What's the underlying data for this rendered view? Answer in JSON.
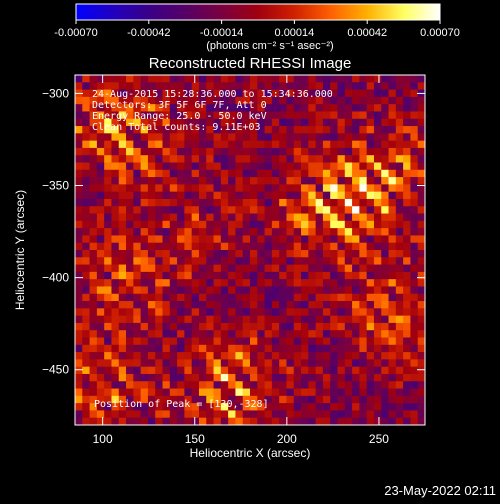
{
  "chart_data": {
    "type": "heatmap",
    "title": "Reconstructed RHESSI Image",
    "xlabel": "Heliocentric X (arcsec)",
    "ylabel": "Heliocentric Y (arcsec)",
    "xlim": [
      85,
      275
    ],
    "ylim": [
      -480,
      -290
    ],
    "xticks": [
      100,
      150,
      200,
      250
    ],
    "yticks": [
      -300,
      -350,
      -400,
      -450
    ],
    "colorbar": {
      "range": [
        -0.0007,
        0.0007
      ],
      "ticks": [
        "-0.00070",
        "-0.00042",
        "-0.00014",
        "0.00014",
        "0.00042",
        "0.00070"
      ],
      "unit_label": "(photons cm⁻² s⁻¹ asec⁻²)",
      "colormap": [
        "#0000ff",
        "#2000c0",
        "#3a0088",
        "#550066",
        "#7a0040",
        "#a00010",
        "#d02000",
        "#ff6000",
        "#ffb000",
        "#ffff60",
        "#ffffff"
      ]
    },
    "annotations": [
      "24-Aug-2015 15:28:36.000 to 15:34:36.000",
      "Detectors: 3F 5F 6F 7F, Att 0",
      "Energy Range: 25.0 - 50.0 keV",
      "Clean    Total counts: 9.11E+03"
    ],
    "peak_label": "Position of Peak = [130,-328]",
    "peak": [
      130,
      -328
    ],
    "bright_regions": [
      {
        "x": 110,
        "y": -320,
        "amp": 0.00065
      },
      {
        "x": 225,
        "y": -360,
        "amp": 0.0007
      },
      {
        "x": 260,
        "y": -345,
        "amp": 0.0005
      },
      {
        "x": 170,
        "y": -460,
        "amp": 0.0006
      },
      {
        "x": 110,
        "y": -400,
        "amp": 0.0004
      },
      {
        "x": 255,
        "y": -420,
        "amp": 0.00045
      },
      {
        "x": 150,
        "y": -370,
        "amp": 0.00025
      },
      {
        "x": 100,
        "y": -460,
        "amp": 0.00045
      }
    ]
  },
  "footer_timestamp": "23-May-2022 02:11"
}
